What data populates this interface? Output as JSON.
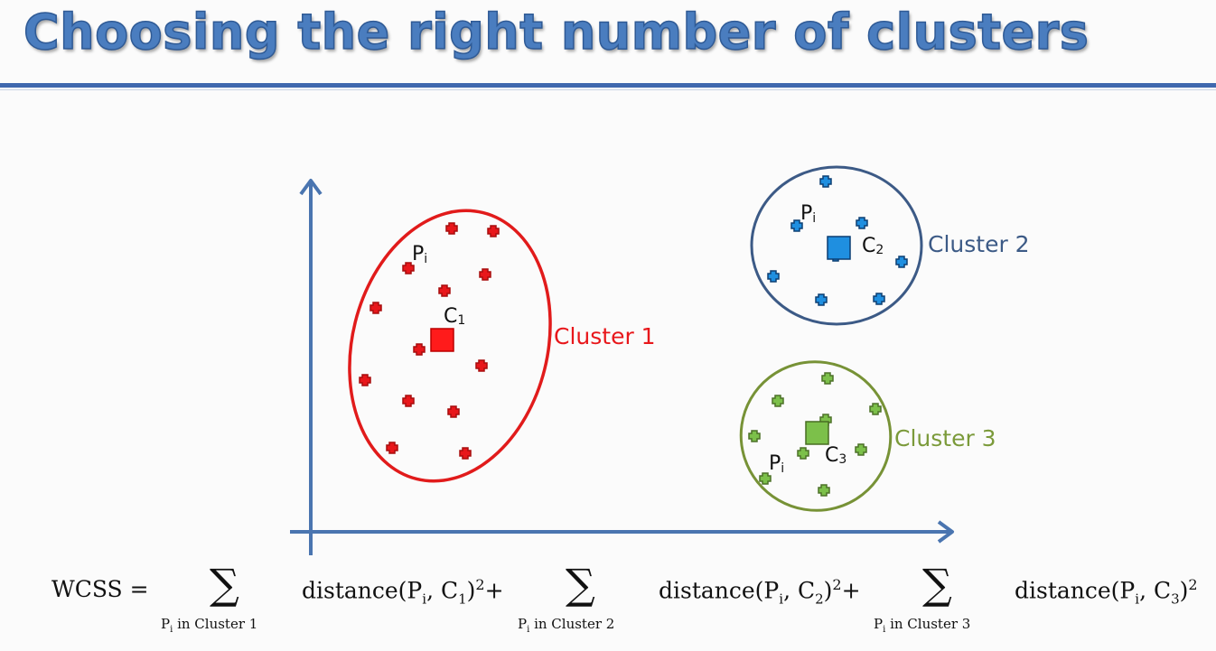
{
  "slide": {
    "title": "Choosing the right number of clusters"
  },
  "plot": {
    "clusters": [
      {
        "label": "Cluster 1",
        "centroid_label": "C1",
        "centroid_base": "C",
        "centroid_sub": "1",
        "point_label_base": "P",
        "point_label_sub": "i",
        "color": "#e8171b",
        "ellipse_color": "#e11b1b"
      },
      {
        "label": "Cluster 2",
        "centroid_label": "C2",
        "centroid_base": "C",
        "centroid_sub": "2",
        "point_label_base": "P",
        "point_label_sub": "i",
        "color": "#1f8fe0",
        "ellipse_color": "#3c5a86"
      },
      {
        "label": "Cluster 3",
        "centroid_label": "C3",
        "centroid_base": "C",
        "centroid_sub": "3",
        "point_label_base": "P",
        "point_label_sub": "i",
        "color": "#7cc04a",
        "ellipse_color": "#779236"
      }
    ]
  },
  "formula": {
    "lhs": "WCSS =",
    "sigma": "∑",
    "terms": [
      {
        "text": "distance(P",
        "sub": "i",
        "mid": ", C",
        "csub": "1",
        "tail": ")",
        "power": "2",
        "plus": "+",
        "under": "P",
        "under_sub": "i",
        "under_tail": " in Cluster 1"
      },
      {
        "text": "distance(P",
        "sub": "i",
        "mid": ", C",
        "csub": "2",
        "tail": ")",
        "power": "2",
        "plus": "+",
        "under": "P",
        "under_sub": "i",
        "under_tail": " in Cluster 2"
      },
      {
        "text": "distance(P",
        "sub": "i",
        "mid": ", C",
        "csub": "3",
        "tail": ")",
        "power": "2",
        "plus": "",
        "under": "P",
        "under_sub": "i",
        "under_tail": " in Cluster 3"
      }
    ]
  }
}
